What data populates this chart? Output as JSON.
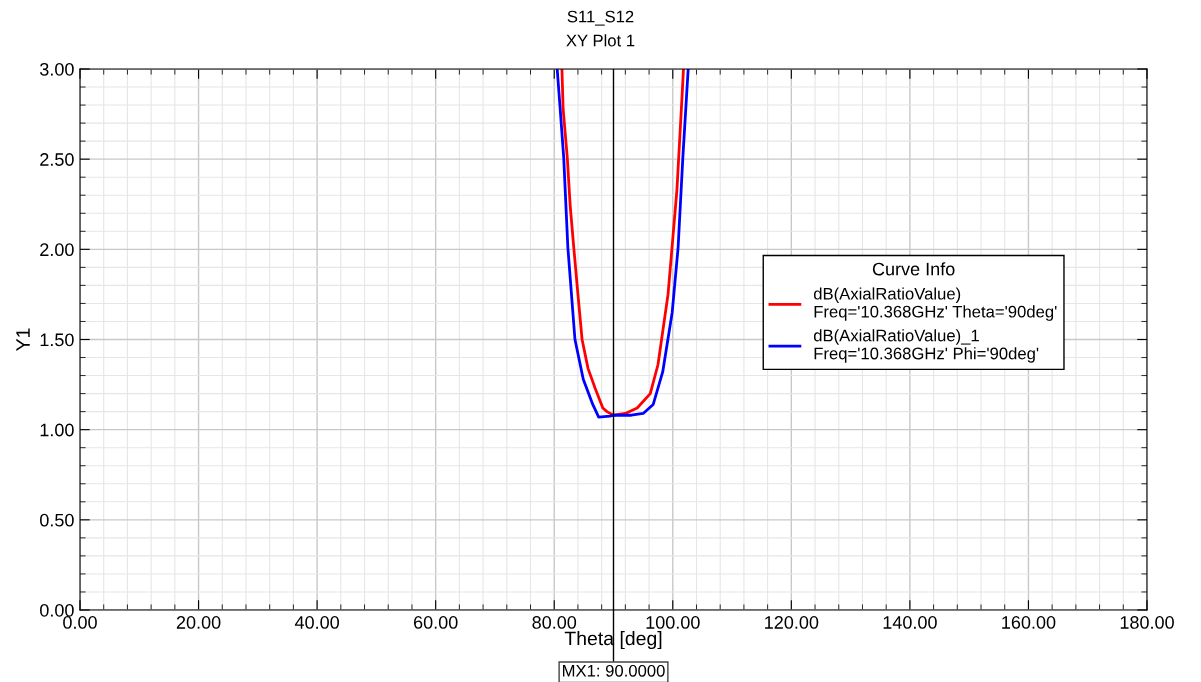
{
  "chart_data": {
    "type": "line",
    "title": "S11_S12",
    "subtitle": "XY Plot 1",
    "xlabel": "Theta [deg]",
    "ylabel": "Y1",
    "legend_title": "Curve Info",
    "xlim": [
      0,
      180
    ],
    "xticks": [
      {
        "value": 0,
        "label": "0.00"
      },
      {
        "value": 20,
        "label": "20.00"
      },
      {
        "value": 40,
        "label": "40.00"
      },
      {
        "value": 60,
        "label": "60.00"
      },
      {
        "value": 80,
        "label": "80.00"
      },
      {
        "value": 100,
        "label": "100.00"
      },
      {
        "value": 120,
        "label": "120.00"
      },
      {
        "value": 140,
        "label": "140.00"
      },
      {
        "value": 160,
        "label": "160.00"
      },
      {
        "value": 180,
        "label": "180.00"
      }
    ],
    "ylim": [
      0,
      3
    ],
    "yticks": [
      {
        "value": 0,
        "label": "0.00"
      },
      {
        "value": 0.5,
        "label": "0.50"
      },
      {
        "value": 1,
        "label": "1.00"
      },
      {
        "value": 1.5,
        "label": "1.50"
      },
      {
        "value": 2,
        "label": "2.00"
      },
      {
        "value": 2.5,
        "label": "2.50"
      },
      {
        "value": 3,
        "label": "3.00"
      }
    ],
    "grid": true,
    "legend": "right",
    "ref_lines": [
      {
        "axis": "x",
        "value": 90,
        "label": "MX1: 90.0000",
        "color": "#000000"
      }
    ],
    "series": [
      {
        "name": "dB(AxialRatioValue)\nFreq='10.368GHz' Theta='90deg'",
        "color": "#ff0000",
        "x": [
          81.3,
          81.5,
          82.2,
          82.7,
          83.3,
          84.0,
          84.7,
          85.7,
          86.9,
          88.2,
          88.9,
          90.0,
          92.0,
          94.0,
          96.2,
          97.5,
          99.2,
          100.7,
          101.6,
          101.8
        ],
        "values": [
          3.0,
          2.78,
          2.51,
          2.24,
          2.01,
          1.75,
          1.5,
          1.34,
          1.23,
          1.12,
          1.1,
          1.08,
          1.09,
          1.12,
          1.2,
          1.36,
          1.75,
          2.33,
          2.87,
          3.0
        ]
      },
      {
        "name": "dB(AxialRatioValue)_1\nFreq='10.368GHz' Phi='90deg'",
        "color": "#0000ff",
        "x": [
          80.5,
          81.0,
          81.6,
          82.3,
          83.5,
          84.9,
          86.5,
          87.5,
          89.4,
          90.0,
          93.0,
          95.0,
          96.7,
          98.3,
          99.9,
          100.9,
          101.7,
          102.6
        ],
        "values": [
          3.0,
          2.78,
          2.51,
          2.01,
          1.5,
          1.28,
          1.14,
          1.07,
          1.075,
          1.08,
          1.08,
          1.09,
          1.14,
          1.32,
          1.65,
          2.01,
          2.51,
          3.0
        ]
      }
    ]
  }
}
